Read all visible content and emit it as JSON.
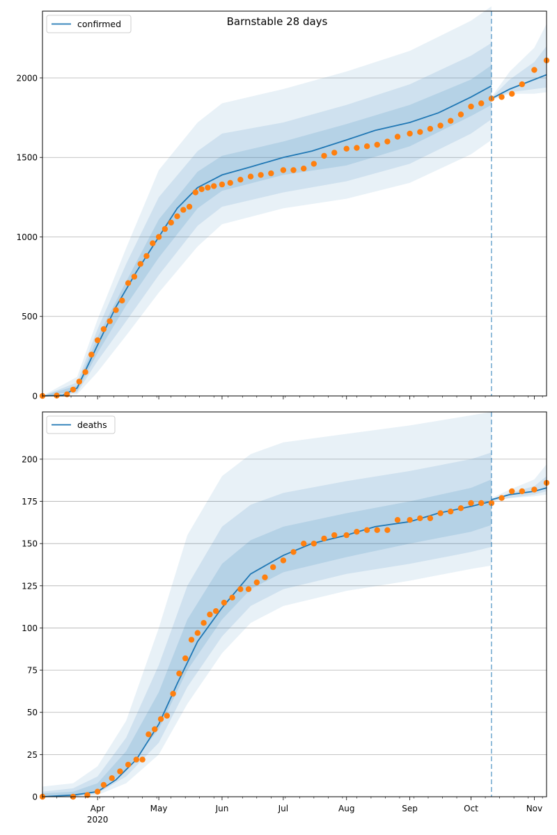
{
  "figure_title": "Barnstable 28 days",
  "colors": {
    "model_line": "#1f77b4",
    "band": "#1f77b4",
    "observed": "#ff7f0e",
    "cutoff": "#1f77b4",
    "grid": "#b0b0b0"
  },
  "x_axis": {
    "tick_labels": [
      "Apr",
      "May",
      "Jun",
      "Jul",
      "Aug",
      "Sep",
      "Oct",
      "Nov"
    ],
    "tick_dates": [
      "2020-04-01",
      "2020-05-01",
      "2020-06-01",
      "2020-07-01",
      "2020-08-01",
      "2020-09-01",
      "2020-10-01",
      "2020-11-01"
    ],
    "year_label": "2020",
    "start": "2020-03-05",
    "end": "2020-11-07",
    "cutoff_date": "2020-10-11"
  },
  "chart_data": [
    {
      "type": "line",
      "legend": "confirmed",
      "legend_position": "upper left",
      "grid": "horizontal",
      "ylim": [
        0,
        2420
      ],
      "yticks": [
        0,
        500,
        1000,
        1500,
        2000
      ],
      "model": {
        "x": [
          "2020-03-05",
          "2020-03-15",
          "2020-03-22",
          "2020-04-01",
          "2020-04-10",
          "2020-04-20",
          "2020-05-01",
          "2020-05-10",
          "2020-05-20",
          "2020-06-01",
          "2020-06-15",
          "2020-07-01",
          "2020-07-15",
          "2020-08-01",
          "2020-08-15",
          "2020-09-01",
          "2020-09-15",
          "2020-10-01",
          "2020-10-11"
        ],
        "y": [
          0,
          5,
          50,
          320,
          560,
          780,
          1000,
          1180,
          1310,
          1390,
          1440,
          1500,
          1540,
          1610,
          1670,
          1720,
          1780,
          1880,
          1950
        ]
      },
      "model_forecast": {
        "x": [
          "2020-10-11",
          "2020-10-20",
          "2020-11-01",
          "2020-11-07"
        ],
        "y": [
          1870,
          1930,
          1990,
          2020
        ]
      },
      "bands": [
        {
          "x": [
            "2020-03-05",
            "2020-03-22",
            "2020-04-01",
            "2020-04-15",
            "2020-05-01",
            "2020-05-20",
            "2020-06-01",
            "2020-07-01",
            "2020-08-01",
            "2020-09-01",
            "2020-10-01",
            "2020-10-11"
          ],
          "upper": [
            0,
            120,
            480,
            930,
            1420,
            1720,
            1840,
            1930,
            2040,
            2170,
            2360,
            2450
          ],
          "lower": [
            0,
            10,
            150,
            380,
            650,
            940,
            1080,
            1180,
            1240,
            1340,
            1520,
            1610
          ]
        },
        {
          "x": [
            "2020-03-05",
            "2020-03-22",
            "2020-04-01",
            "2020-04-15",
            "2020-05-01",
            "2020-05-20",
            "2020-06-01",
            "2020-07-01",
            "2020-08-01",
            "2020-09-01",
            "2020-10-01",
            "2020-10-11"
          ],
          "upper": [
            0,
            85,
            420,
            830,
            1250,
            1540,
            1650,
            1720,
            1830,
            1960,
            2140,
            2220
          ],
          "lower": [
            0,
            20,
            220,
            470,
            760,
            1070,
            1190,
            1280,
            1350,
            1460,
            1650,
            1740
          ]
        },
        {
          "x": [
            "2020-03-05",
            "2020-03-22",
            "2020-04-01",
            "2020-04-15",
            "2020-05-01",
            "2020-05-20",
            "2020-06-01",
            "2020-07-01",
            "2020-08-01",
            "2020-09-01",
            "2020-10-01",
            "2020-10-11"
          ],
          "upper": [
            0,
            65,
            370,
            720,
            1110,
            1410,
            1510,
            1600,
            1710,
            1830,
            1990,
            2080
          ],
          "lower": [
            0,
            30,
            270,
            570,
            870,
            1180,
            1290,
            1390,
            1450,
            1570,
            1760,
            1830
          ]
        },
        {
          "x": [
            "2020-10-11",
            "2020-10-20",
            "2020-11-01",
            "2020-11-07"
          ],
          "upper": [
            1880,
            2040,
            2190,
            2340
          ],
          "lower": [
            1860,
            1900,
            1900,
            1910
          ]
        },
        {
          "x": [
            "2020-10-11",
            "2020-10-20",
            "2020-11-01",
            "2020-11-07"
          ],
          "upper": [
            1875,
            1990,
            2100,
            2200
          ],
          "lower": [
            1865,
            1910,
            1930,
            1940
          ]
        }
      ],
      "observed": {
        "x": [
          "2020-03-05",
          "2020-03-12",
          "2020-03-17",
          "2020-03-20",
          "2020-03-23",
          "2020-03-26",
          "2020-03-29",
          "2020-04-01",
          "2020-04-04",
          "2020-04-07",
          "2020-04-10",
          "2020-04-13",
          "2020-04-16",
          "2020-04-19",
          "2020-04-22",
          "2020-04-25",
          "2020-04-28",
          "2020-05-01",
          "2020-05-04",
          "2020-05-07",
          "2020-05-10",
          "2020-05-13",
          "2020-05-16",
          "2020-05-19",
          "2020-05-22",
          "2020-05-25",
          "2020-05-28",
          "2020-06-01",
          "2020-06-05",
          "2020-06-10",
          "2020-06-15",
          "2020-06-20",
          "2020-06-25",
          "2020-07-01",
          "2020-07-06",
          "2020-07-11",
          "2020-07-16",
          "2020-07-21",
          "2020-07-26",
          "2020-08-01",
          "2020-08-06",
          "2020-08-11",
          "2020-08-16",
          "2020-08-21",
          "2020-08-26",
          "2020-09-01",
          "2020-09-06",
          "2020-09-11",
          "2020-09-16",
          "2020-09-21",
          "2020-09-26",
          "2020-10-01",
          "2020-10-06",
          "2020-10-11",
          "2020-10-16",
          "2020-10-21",
          "2020-10-26",
          "2020-11-01",
          "2020-11-07"
        ],
        "y": [
          0,
          2,
          10,
          40,
          90,
          150,
          260,
          350,
          420,
          470,
          540,
          600,
          710,
          750,
          830,
          880,
          960,
          1000,
          1050,
          1090,
          1130,
          1170,
          1190,
          1280,
          1300,
          1310,
          1320,
          1330,
          1340,
          1360,
          1380,
          1390,
          1400,
          1420,
          1420,
          1430,
          1460,
          1510,
          1530,
          1555,
          1560,
          1570,
          1580,
          1600,
          1630,
          1650,
          1660,
          1680,
          1700,
          1730,
          1770,
          1820,
          1840,
          1870,
          1880,
          1900,
          1960,
          2050,
          2110
        ]
      }
    },
    {
      "type": "line",
      "legend": "deaths",
      "legend_position": "upper left",
      "grid": "horizontal",
      "ylim": [
        0,
        228
      ],
      "yticks": [
        0,
        25,
        50,
        75,
        100,
        125,
        150,
        175,
        200
      ],
      "model": {
        "x": [
          "2020-03-05",
          "2020-03-20",
          "2020-04-01",
          "2020-04-10",
          "2020-04-20",
          "2020-05-01",
          "2020-05-10",
          "2020-05-20",
          "2020-06-01",
          "2020-06-15",
          "2020-07-01",
          "2020-07-15",
          "2020-08-01",
          "2020-08-15",
          "2020-09-01",
          "2020-09-15",
          "2020-10-01",
          "2020-10-11"
        ],
        "y": [
          0,
          1,
          3,
          10,
          22,
          43,
          67,
          92,
          112,
          132,
          143,
          150,
          155,
          160,
          163,
          168,
          172,
          175
        ]
      },
      "model_forecast": {
        "x": [
          "2020-10-11",
          "2020-10-20",
          "2020-11-01",
          "2020-11-07"
        ],
        "y": [
          176,
          179,
          181,
          183
        ]
      },
      "bands": [
        {
          "x": [
            "2020-03-05",
            "2020-03-20",
            "2020-04-01",
            "2020-04-15",
            "2020-05-01",
            "2020-05-15",
            "2020-06-01",
            "2020-06-15",
            "2020-07-01",
            "2020-08-01",
            "2020-09-01",
            "2020-10-01",
            "2020-10-11"
          ],
          "upper": [
            6,
            8,
            18,
            45,
            100,
            155,
            190,
            203,
            210,
            215,
            220,
            226,
            228
          ],
          "lower": [
            0,
            0,
            1,
            8,
            25,
            55,
            85,
            103,
            113,
            122,
            128,
            135,
            137
          ]
        },
        {
          "x": [
            "2020-03-05",
            "2020-03-20",
            "2020-04-01",
            "2020-04-15",
            "2020-05-01",
            "2020-05-15",
            "2020-06-01",
            "2020-06-15",
            "2020-07-01",
            "2020-08-01",
            "2020-09-01",
            "2020-10-01",
            "2020-10-11"
          ],
          "upper": [
            3,
            5,
            12,
            35,
            78,
            125,
            160,
            173,
            180,
            187,
            193,
            200,
            204
          ],
          "lower": [
            0,
            0,
            2,
            12,
            32,
            65,
            95,
            113,
            123,
            132,
            138,
            145,
            148
          ]
        },
        {
          "x": [
            "2020-03-05",
            "2020-03-20",
            "2020-04-01",
            "2020-04-15",
            "2020-05-01",
            "2020-05-15",
            "2020-06-01",
            "2020-06-15",
            "2020-07-01",
            "2020-08-01",
            "2020-09-01",
            "2020-10-01",
            "2020-10-11"
          ],
          "upper": [
            2,
            3,
            8,
            27,
            62,
            105,
            138,
            152,
            160,
            168,
            175,
            183,
            188
          ],
          "lower": [
            0,
            0,
            3,
            16,
            40,
            75,
            105,
            123,
            133,
            142,
            150,
            157,
            161
          ]
        },
        {
          "x": [
            "2020-10-11",
            "2020-10-20",
            "2020-11-01",
            "2020-11-07"
          ],
          "upper": [
            177,
            182,
            188,
            197
          ],
          "lower": [
            175,
            177,
            178,
            179
          ]
        },
        {
          "x": [
            "2020-10-11",
            "2020-10-20",
            "2020-11-01",
            "2020-11-07"
          ],
          "upper": [
            176,
            180,
            184,
            190
          ],
          "lower": [
            175,
            177,
            179,
            181
          ]
        }
      ],
      "observed": {
        "x": [
          "2020-03-05",
          "2020-03-20",
          "2020-03-27",
          "2020-04-01",
          "2020-04-04",
          "2020-04-08",
          "2020-04-12",
          "2020-04-16",
          "2020-04-20",
          "2020-04-23",
          "2020-04-26",
          "2020-04-29",
          "2020-05-02",
          "2020-05-05",
          "2020-05-08",
          "2020-05-11",
          "2020-05-14",
          "2020-05-17",
          "2020-05-20",
          "2020-05-23",
          "2020-05-26",
          "2020-05-29",
          "2020-06-02",
          "2020-06-06",
          "2020-06-10",
          "2020-06-14",
          "2020-06-18",
          "2020-06-22",
          "2020-06-26",
          "2020-07-01",
          "2020-07-06",
          "2020-07-11",
          "2020-07-16",
          "2020-07-21",
          "2020-07-26",
          "2020-08-01",
          "2020-08-06",
          "2020-08-11",
          "2020-08-16",
          "2020-08-21",
          "2020-08-26",
          "2020-09-01",
          "2020-09-06",
          "2020-09-11",
          "2020-09-16",
          "2020-09-21",
          "2020-09-26",
          "2020-10-01",
          "2020-10-06",
          "2020-10-11",
          "2020-10-16",
          "2020-10-21",
          "2020-10-26",
          "2020-11-01",
          "2020-11-07"
        ],
        "y": [
          0,
          0,
          1,
          3,
          7,
          11,
          15,
          19,
          22,
          22,
          37,
          40,
          46,
          48,
          61,
          73,
          82,
          93,
          97,
          103,
          108,
          110,
          115,
          118,
          123,
          123,
          127,
          130,
          136,
          140,
          145,
          150,
          150,
          153,
          155,
          155,
          157,
          158,
          158,
          158,
          164,
          164,
          165,
          165,
          168,
          169,
          171,
          174,
          174,
          174,
          177,
          181,
          181,
          182,
          186
        ]
      }
    }
  ]
}
